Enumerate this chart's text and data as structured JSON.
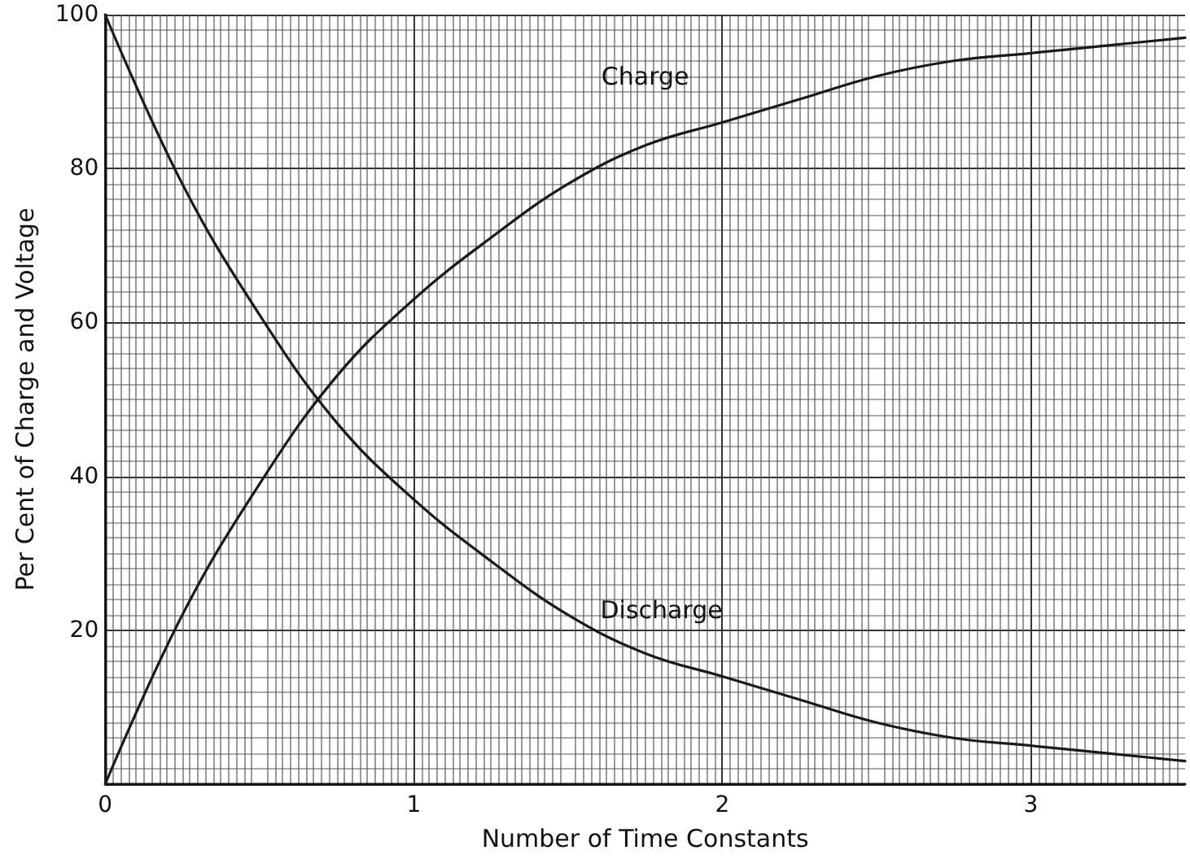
{
  "chart_data": {
    "type": "line",
    "xlabel": "Number of Time Constants",
    "ylabel": "Per Cent of Charge and Voltage",
    "x": [
      0,
      0.25,
      0.5,
      0.75,
      1,
      1.25,
      1.5,
      1.75,
      2,
      2.25,
      2.5,
      2.75,
      3,
      3.25,
      3.5
    ],
    "series": [
      {
        "name": "Charge",
        "color": "#1a1a1a",
        "values": [
          0,
          22,
          39,
          53,
          63,
          71,
          78,
          83,
          86,
          89,
          92,
          94,
          95,
          96,
          97
        ]
      },
      {
        "name": "Discharge",
        "color": "#1a1a1a",
        "values": [
          100,
          78,
          61,
          47,
          37,
          29,
          22,
          17,
          14,
          11,
          8,
          6,
          5,
          4,
          3
        ]
      }
    ],
    "xlim": [
      0,
      3.5
    ],
    "ylim": [
      0,
      100
    ],
    "xticks": [
      0,
      1,
      2,
      3
    ],
    "yticks": [
      {
        "value": 0,
        "label": null
      },
      20,
      40,
      60,
      80,
      100
    ],
    "grid": true,
    "legend": false,
    "marker": "none",
    "line_style": "solid"
  }
}
